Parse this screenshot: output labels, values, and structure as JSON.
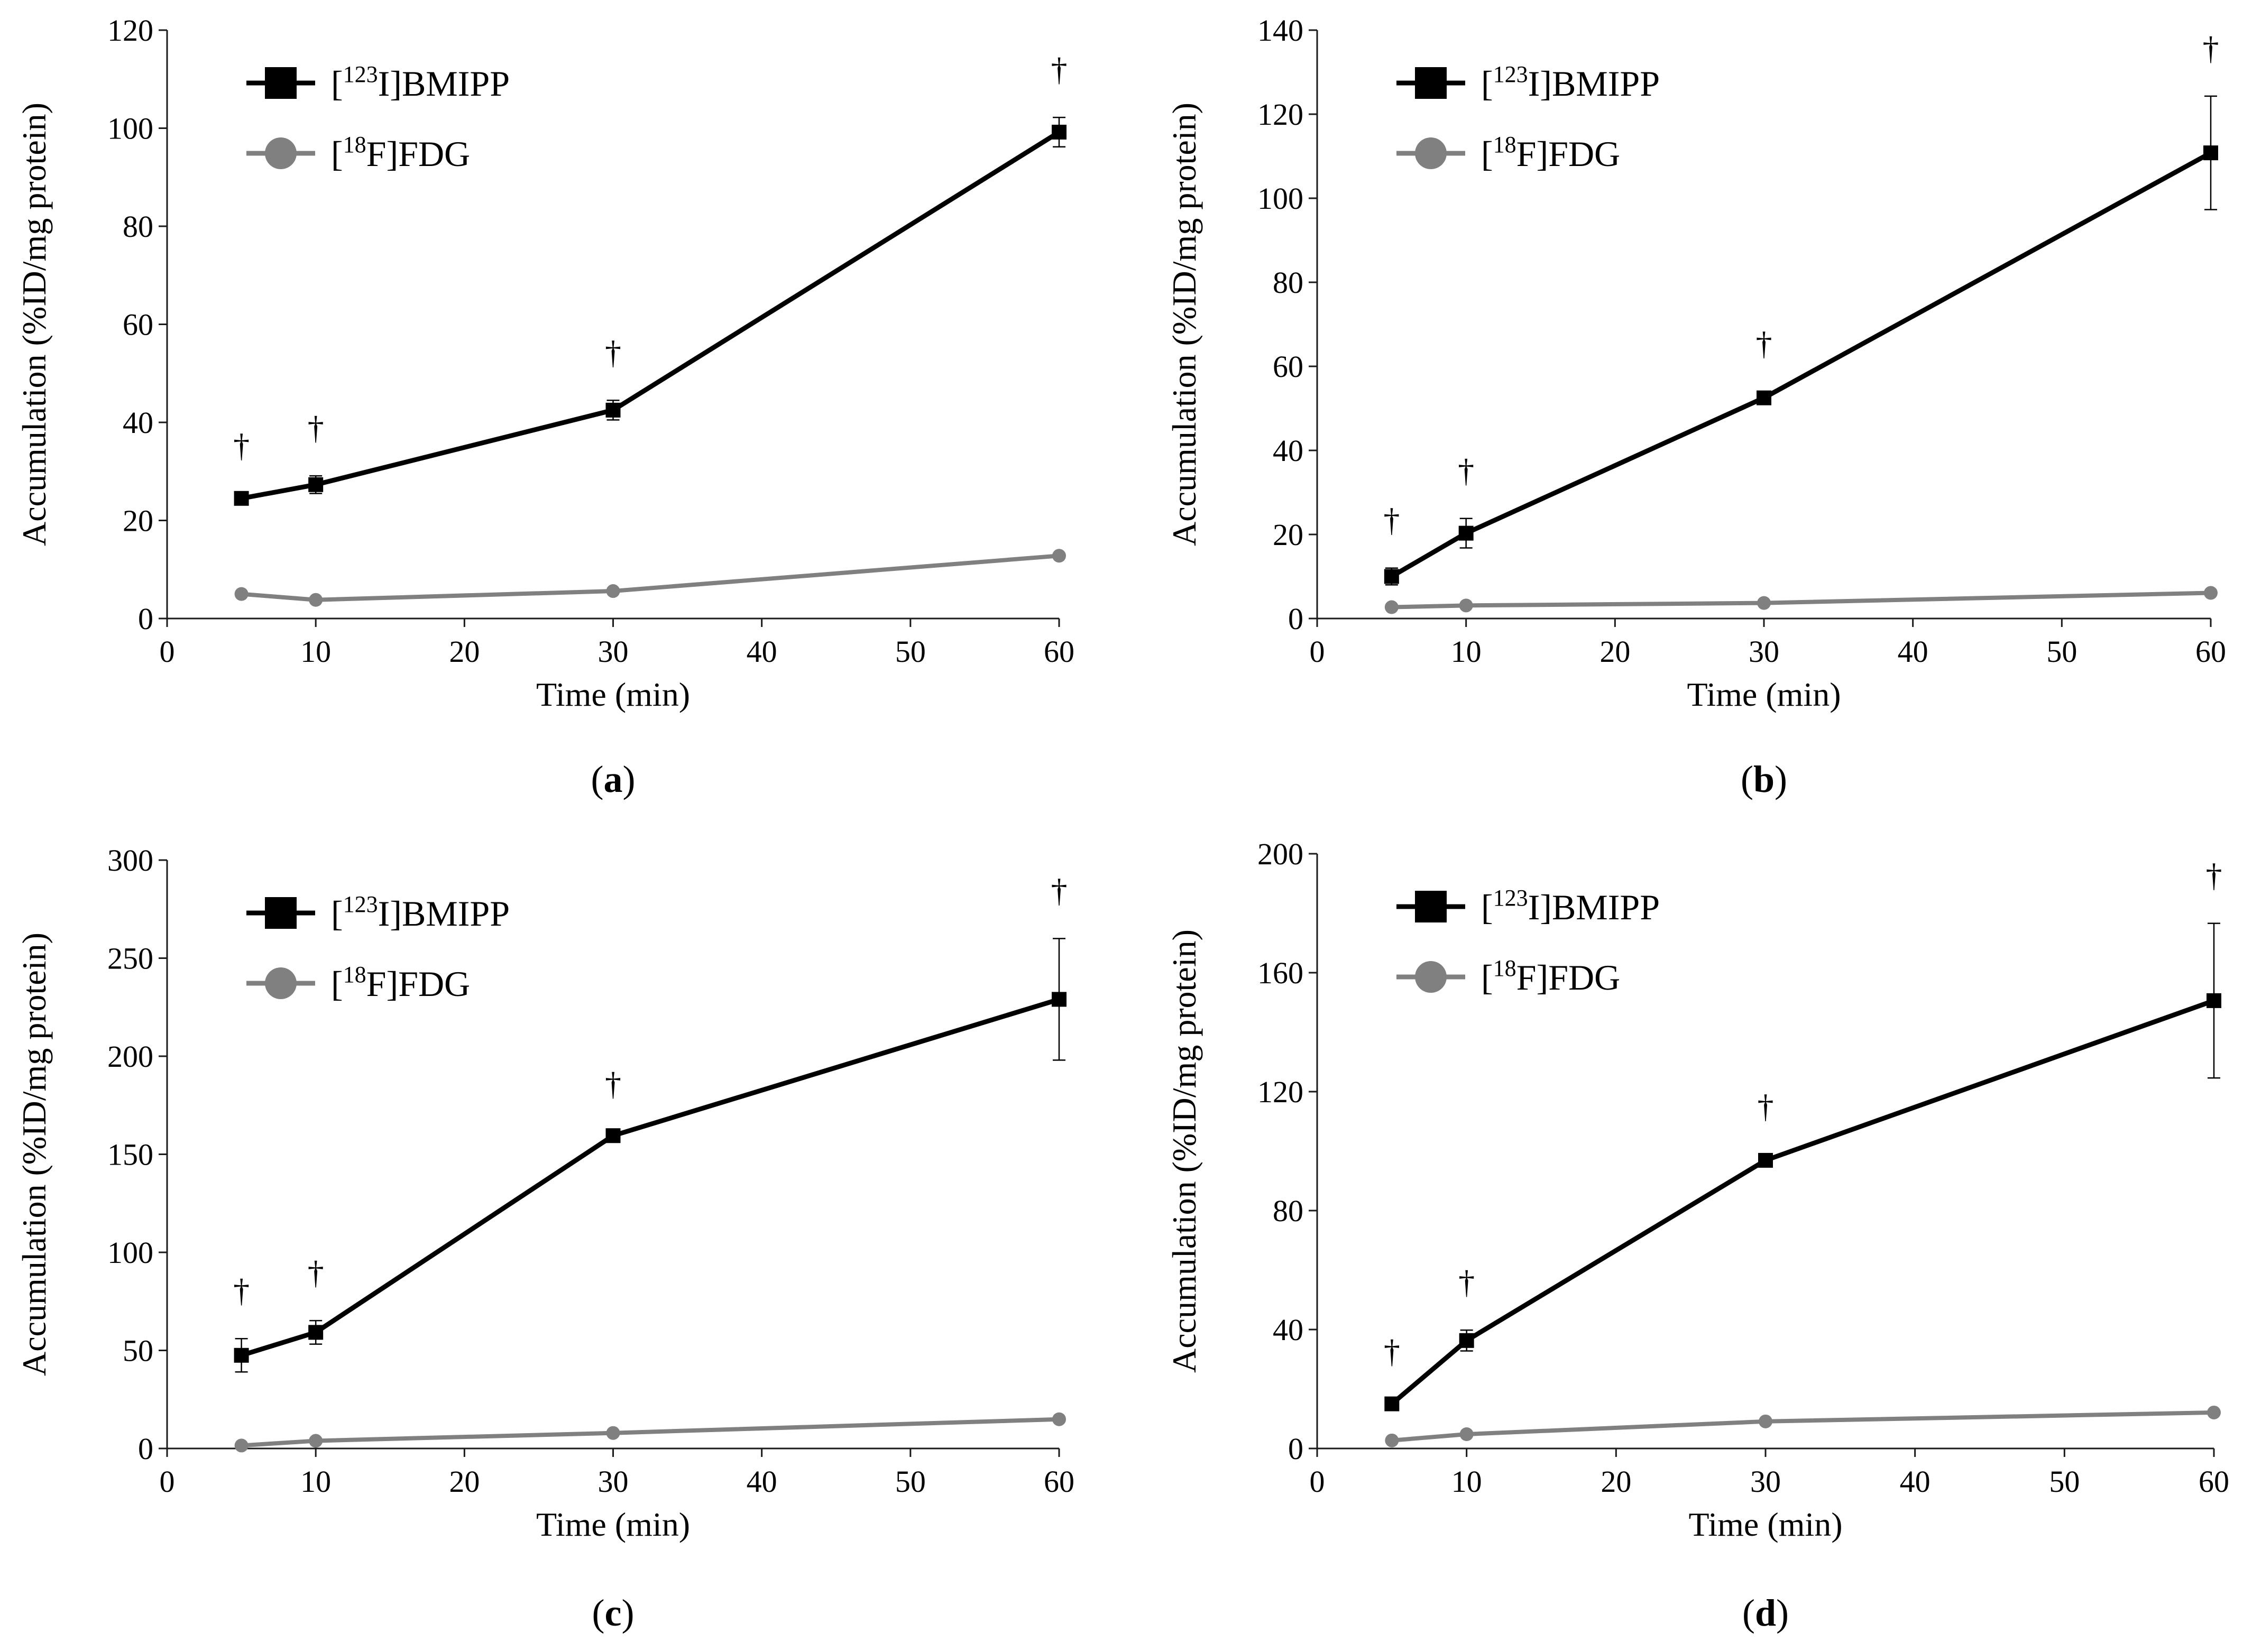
{
  "figure": {
    "panels": [
      {
        "id": "a",
        "label_open": "(",
        "label": "a",
        "label_close": ")",
        "ylabel": "Accumulation (%ID/mg protein)",
        "xlabel": "Time (min)",
        "significance_marker": "†",
        "xticks": [
          "0",
          "10",
          "20",
          "30",
          "40",
          "50",
          "60"
        ],
        "yticks": [
          "0",
          "20",
          "40",
          "60",
          "80",
          "100",
          "120"
        ],
        "legend": [
          {
            "bracket_open": "[",
            "sup": "123",
            "rest": "I]BMIPP"
          },
          {
            "bracket_open": "[",
            "sup": "18",
            "rest": "F]FDG"
          }
        ]
      },
      {
        "id": "b",
        "label_open": "(",
        "label": "b",
        "label_close": ")",
        "ylabel": "Accumulation (%ID/mg protein)",
        "xlabel": "Time (min)",
        "significance_marker": "†",
        "xticks": [
          "0",
          "10",
          "20",
          "30",
          "40",
          "50",
          "60"
        ],
        "yticks": [
          "0",
          "20",
          "40",
          "60",
          "80",
          "100",
          "120",
          "140"
        ],
        "legend": [
          {
            "bracket_open": "[",
            "sup": "123",
            "rest": "I]BMIPP"
          },
          {
            "bracket_open": "[",
            "sup": "18",
            "rest": "F]FDG"
          }
        ]
      },
      {
        "id": "c",
        "label_open": "(",
        "label": "c",
        "label_close": ")",
        "ylabel": "Accumulation (%ID/mg protein)",
        "xlabel": "Time (min)",
        "significance_marker": "†",
        "xticks": [
          "0",
          "10",
          "20",
          "30",
          "40",
          "50",
          "60"
        ],
        "yticks": [
          "0",
          "50",
          "100",
          "150",
          "200",
          "250",
          "300"
        ],
        "legend": [
          {
            "bracket_open": "[",
            "sup": "123",
            "rest": "I]BMIPP"
          },
          {
            "bracket_open": "[",
            "sup": "18",
            "rest": "F]FDG"
          }
        ]
      },
      {
        "id": "d",
        "label_open": "(",
        "label": "d",
        "label_close": ")",
        "ylabel": "Accumulation (%ID/mg protein)",
        "xlabel": "Time (min)",
        "significance_marker": "†",
        "xticks": [
          "0",
          "10",
          "20",
          "30",
          "40",
          "50",
          "60"
        ],
        "yticks": [
          "0",
          "40",
          "80",
          "120",
          "160",
          "200"
        ],
        "legend": [
          {
            "bracket_open": "[",
            "sup": "123",
            "rest": "I]BMIPP"
          },
          {
            "bracket_open": "[",
            "sup": "18",
            "rest": "F]FDG"
          }
        ]
      }
    ]
  },
  "colors": {
    "bmipp": "#000000",
    "fdg": "#808080"
  },
  "chart_data": [
    {
      "panel": "a",
      "type": "line",
      "title": "",
      "xlabel": "Time (min)",
      "ylabel": "Accumulation (%ID/mg protein)",
      "xlim": [
        0,
        60
      ],
      "ylim": [
        0,
        120
      ],
      "x": [
        5,
        10,
        30,
        60
      ],
      "significant_at": [
        5,
        10,
        30,
        60
      ],
      "series": [
        {
          "name": "[123I]BMIPP",
          "marker": "square",
          "values": [
            24.5,
            27.3,
            42.5,
            99.2
          ],
          "errors": [
            1.0,
            1.8,
            2.0,
            3.0
          ]
        },
        {
          "name": "[18F]FDG",
          "marker": "circle",
          "values": [
            5.0,
            3.8,
            5.6,
            12.8
          ],
          "errors": [
            0.3,
            0.3,
            0.3,
            0.4
          ]
        }
      ]
    },
    {
      "panel": "b",
      "type": "line",
      "title": "",
      "xlabel": "Time (min)",
      "ylabel": "Accumulation (%ID/mg protein)",
      "xlim": [
        0,
        60
      ],
      "ylim": [
        0,
        140
      ],
      "x": [
        5,
        10,
        30,
        60
      ],
      "significant_at": [
        5,
        10,
        30,
        60
      ],
      "series": [
        {
          "name": "[123I]BMIPP",
          "marker": "square",
          "values": [
            10.0,
            20.3,
            52.5,
            110.8
          ],
          "errors": [
            2.0,
            3.5,
            1.5,
            13.5
          ]
        },
        {
          "name": "[18F]FDG",
          "marker": "circle",
          "values": [
            2.7,
            3.1,
            3.7,
            6.1
          ],
          "errors": [
            0.2,
            0.2,
            0.2,
            0.3
          ]
        }
      ]
    },
    {
      "panel": "c",
      "type": "line",
      "title": "",
      "xlabel": "Time (min)",
      "ylabel": "Accumulation (%ID/mg protein)",
      "xlim": [
        0,
        60
      ],
      "ylim": [
        0,
        300
      ],
      "x": [
        5,
        10,
        30,
        60
      ],
      "significant_at": [
        5,
        10,
        30,
        60
      ],
      "series": [
        {
          "name": "[123I]BMIPP",
          "marker": "square",
          "values": [
            47.5,
            59.2,
            159.5,
            229.0
          ],
          "errors": [
            8.5,
            6.0,
            2.0,
            31.0
          ]
        },
        {
          "name": "[18F]FDG",
          "marker": "circle",
          "values": [
            1.5,
            3.9,
            7.9,
            14.9
          ],
          "errors": [
            0.3,
            0.4,
            0.5,
            0.6
          ]
        }
      ]
    },
    {
      "panel": "d",
      "type": "line",
      "title": "",
      "xlabel": "Time (min)",
      "ylabel": "Accumulation (%ID/mg protein)",
      "xlim": [
        0,
        60
      ],
      "ylim": [
        0,
        200
      ],
      "x": [
        5,
        10,
        30,
        60
      ],
      "significant_at": [
        5,
        10,
        30,
        60
      ],
      "series": [
        {
          "name": "[123I]BMIPP",
          "marker": "square",
          "values": [
            15.0,
            36.3,
            96.9,
            150.6
          ],
          "errors": [
            1.5,
            3.5,
            2.0,
            26.0
          ]
        },
        {
          "name": "[18F]FDG",
          "marker": "circle",
          "values": [
            2.7,
            4.8,
            9.1,
            12.1
          ],
          "errors": [
            0.3,
            0.3,
            0.4,
            0.5
          ]
        }
      ]
    }
  ]
}
